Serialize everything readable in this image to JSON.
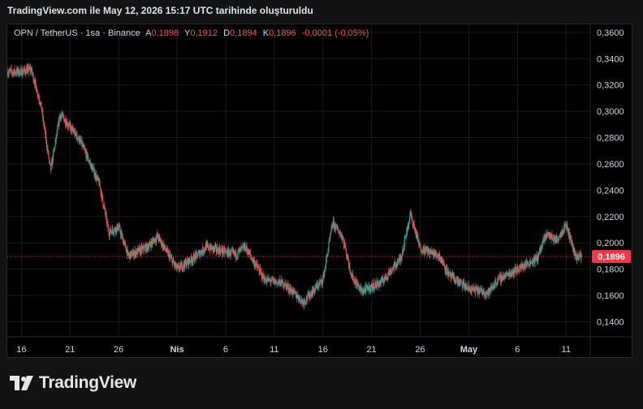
{
  "header": {
    "caption": "TradingView.com ile May 12, 2026 15:17 UTC tarihinde oluşturuldu"
  },
  "legend": {
    "symbol": "OPN / TetherUS · 1sa · Binance",
    "open_label": "A",
    "open": "0,1898",
    "high_label": "Y",
    "high": "0,1912",
    "low_label": "D",
    "low": "0,1894",
    "close_label": "K",
    "close": "0,1896",
    "change": "-0,0001 (-0,05%)"
  },
  "price_tag": "0,1896",
  "logo": {
    "text": "TradingView"
  },
  "colors": {
    "up": "#26a69a",
    "down": "#ef5350",
    "background": "#000000",
    "grid": "#1c1c1c",
    "axis_text": "#d1d4dc",
    "price_tag_bg": "#f23645"
  },
  "chart_data": {
    "type": "candlestick",
    "symbol": "OPN / TetherUS",
    "interval": "1 hour",
    "exchange": "Binance",
    "last_price": 0.1896,
    "ylim": [
      0.13,
      0.365
    ],
    "y_ticks": [
      0.14,
      0.16,
      0.18,
      0.2,
      0.22,
      0.24,
      0.26,
      0.28,
      0.3,
      0.32,
      0.34,
      0.36
    ],
    "y_tick_labels": [
      "0,1400",
      "0,1600",
      "0,1800",
      "0,2000",
      "0,2200",
      "0,2400",
      "0,2600",
      "0,2800",
      "0,3000",
      "0,3200",
      "0,3400",
      "0,3600"
    ],
    "x_ticks": [
      "16",
      "21",
      "26",
      "Nis",
      "6",
      "11",
      "16",
      "21",
      "26",
      "May",
      "6",
      "11"
    ],
    "grid": true,
    "approx_path": [
      {
        "x": "16 Mar",
        "y": 0.33
      },
      {
        "x": "17 Mar",
        "y": 0.332
      },
      {
        "x": "18 Mar",
        "y": 0.305
      },
      {
        "x": "19 Mar",
        "y": 0.255
      },
      {
        "x": "20 Mar",
        "y": 0.298
      },
      {
        "x": "22 Mar",
        "y": 0.278
      },
      {
        "x": "24 Mar",
        "y": 0.245
      },
      {
        "x": "25 Mar",
        "y": 0.208
      },
      {
        "x": "26 Mar",
        "y": 0.212
      },
      {
        "x": "27 Mar",
        "y": 0.19
      },
      {
        "x": "29 Mar",
        "y": 0.197
      },
      {
        "x": "30 Mar",
        "y": 0.205
      },
      {
        "x": "1 Apr",
        "y": 0.18
      },
      {
        "x": "3 Apr",
        "y": 0.19
      },
      {
        "x": "4 Apr",
        "y": 0.197
      },
      {
        "x": "7 Apr",
        "y": 0.191
      },
      {
        "x": "8 Apr",
        "y": 0.197
      },
      {
        "x": "10 Apr",
        "y": 0.172
      },
      {
        "x": "12 Apr",
        "y": 0.169
      },
      {
        "x": "14 Apr",
        "y": 0.155
      },
      {
        "x": "16 Apr",
        "y": 0.172
      },
      {
        "x": "17 Apr",
        "y": 0.215
      },
      {
        "x": "18 Apr",
        "y": 0.205
      },
      {
        "x": "19 Apr",
        "y": 0.174
      },
      {
        "x": "20 Apr",
        "y": 0.163
      },
      {
        "x": "22 Apr",
        "y": 0.17
      },
      {
        "x": "24 Apr",
        "y": 0.188
      },
      {
        "x": "25 Apr",
        "y": 0.222
      },
      {
        "x": "26 Apr",
        "y": 0.196
      },
      {
        "x": "28 Apr",
        "y": 0.19
      },
      {
        "x": "29 Apr",
        "y": 0.175
      },
      {
        "x": "1 May",
        "y": 0.165
      },
      {
        "x": "3 May",
        "y": 0.162
      },
      {
        "x": "4 May",
        "y": 0.172
      },
      {
        "x": "6 May",
        "y": 0.18
      },
      {
        "x": "8 May",
        "y": 0.188
      },
      {
        "x": "9 May",
        "y": 0.207
      },
      {
        "x": "10 May",
        "y": 0.202
      },
      {
        "x": "11 May",
        "y": 0.214
      },
      {
        "x": "12 May",
        "y": 0.1896
      }
    ]
  }
}
